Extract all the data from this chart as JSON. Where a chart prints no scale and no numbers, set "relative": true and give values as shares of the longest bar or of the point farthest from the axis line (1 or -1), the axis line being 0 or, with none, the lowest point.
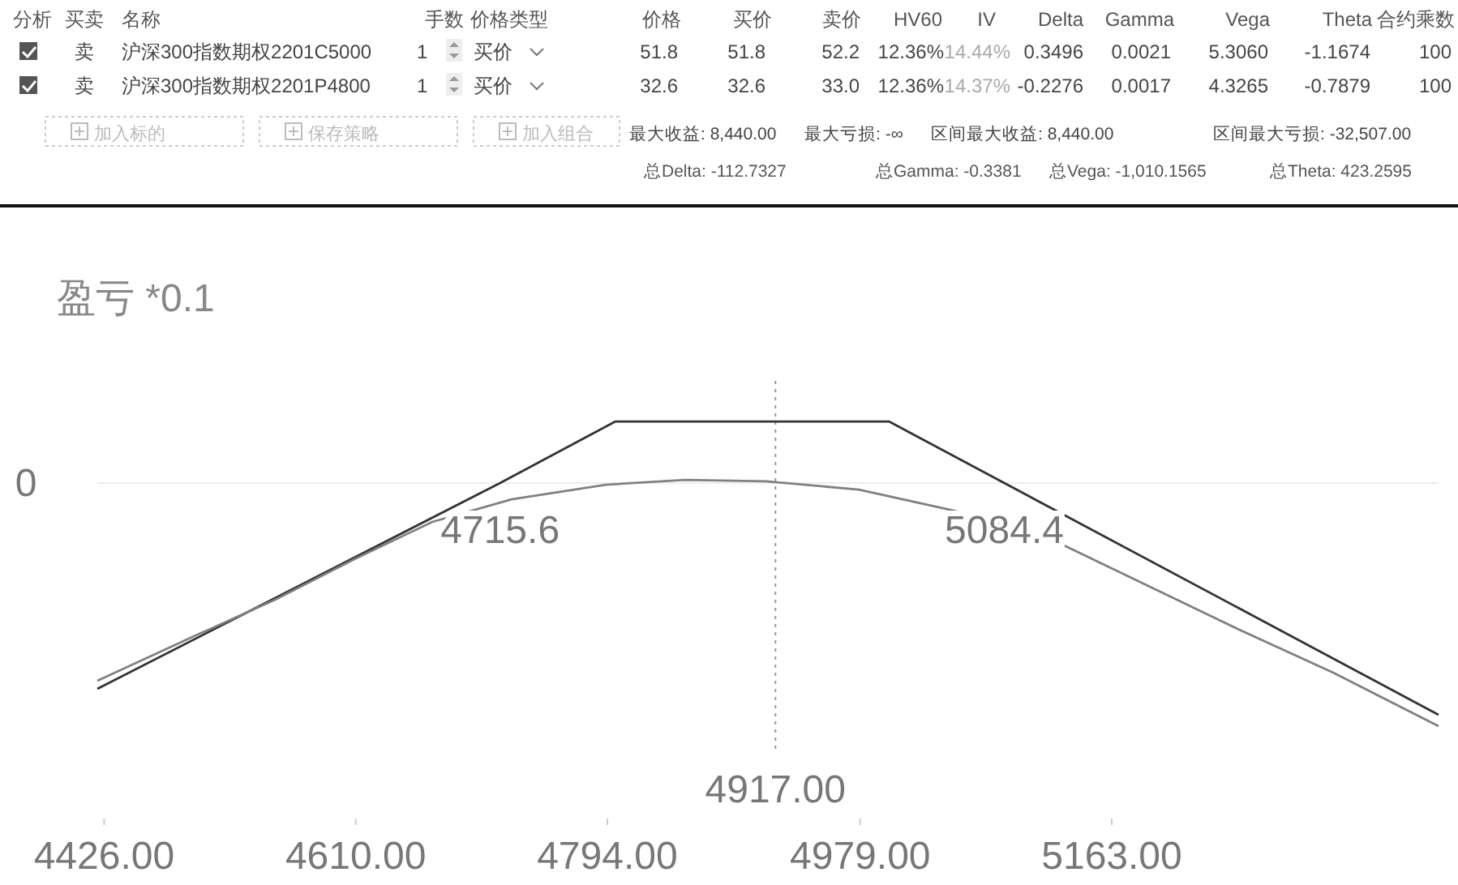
{
  "chart_data": [
    {
      "type": "other",
      "annotations": [
        "分析",
        "买卖",
        "名称",
        "手数",
        "价格类型",
        "价格",
        "买价",
        "卖价",
        "HV60",
        "IV",
        "Delta",
        "Gamma",
        "Vega",
        "Theta",
        "合约乘数",
        "卖",
        "沪深300指数期权2201C5000",
        "1",
        "买价",
        "51.8",
        "51.8",
        "52.2",
        "12.36%",
        "14.44%",
        "0.3496",
        "0.0021",
        "5.3060",
        "-1.1674",
        "100",
        "卖",
        "沪深300指数期权2201P4800",
        "1",
        "买价",
        "32.6",
        "32.6",
        "33.0",
        "12.36%",
        "14.37%",
        "-0.2276",
        "0.0017",
        "4.3265",
        "-0.7879",
        "100",
        "加入标的",
        "保存策略",
        "加入组合",
        "最大收益: 8,440.00",
        "最大亏损: -∞",
        "区间最大收益: 8,440.00",
        "区间最大亏损: -32,507.00",
        "总Delta: -112.7327",
        "总Gamma: -0.3381",
        "总Vega: -1,010.1565",
        "总Theta: 423.2595"
      ]
    },
    {
      "type": "line",
      "relative": true,
      "ylabel": "盈亏 *0.1",
      "xlim": [
        4421,
        5402
      ],
      "xticks": [
        {
          "value": 4426,
          "label": "4426.00"
        },
        {
          "value": 4610,
          "label": "4610.00"
        },
        {
          "value": 4794,
          "label": "4794.00"
        },
        {
          "value": 4979,
          "label": "4979.00"
        },
        {
          "value": 5163,
          "label": "5163.00"
        }
      ],
      "series": [
        {
          "color": "#333333",
          "x": [
            4421,
            4715.6,
            4800,
            5000,
            5084.4,
            5402
          ],
          "values": [
            -0.847,
            0,
            0.253,
            0.253,
            0,
            -0.953
          ]
        },
        {
          "color": "#808080",
          "x": [
            4421,
            4493,
            4551,
            4609,
            4666,
            4724,
            4793,
            4851,
            4910,
            4978,
            5047,
            5117,
            5186,
            5255,
            5325,
            5402
          ],
          "values": [
            -0.813,
            -0.627,
            -0.48,
            -0.313,
            -0.16,
            -0.067,
            -0.007,
            0.013,
            0.007,
            -0.027,
            -0.113,
            -0.227,
            -0.413,
            -0.6,
            -0.78,
            -1
          ]
        }
      ],
      "ref_lines": [
        {
          "axis": "x",
          "value": 4917,
          "label": "4917.00",
          "line_style": "dotted",
          "color": "#999999"
        },
        {
          "axis": "y",
          "value": 0,
          "label": "0",
          "color": "#eeeeee"
        }
      ],
      "annotations": [
        {
          "text": "4715.6",
          "x": 4715.6,
          "y": 0
        },
        {
          "text": "5084.4",
          "x": 5084.4,
          "y": 0
        }
      ]
    }
  ]
}
